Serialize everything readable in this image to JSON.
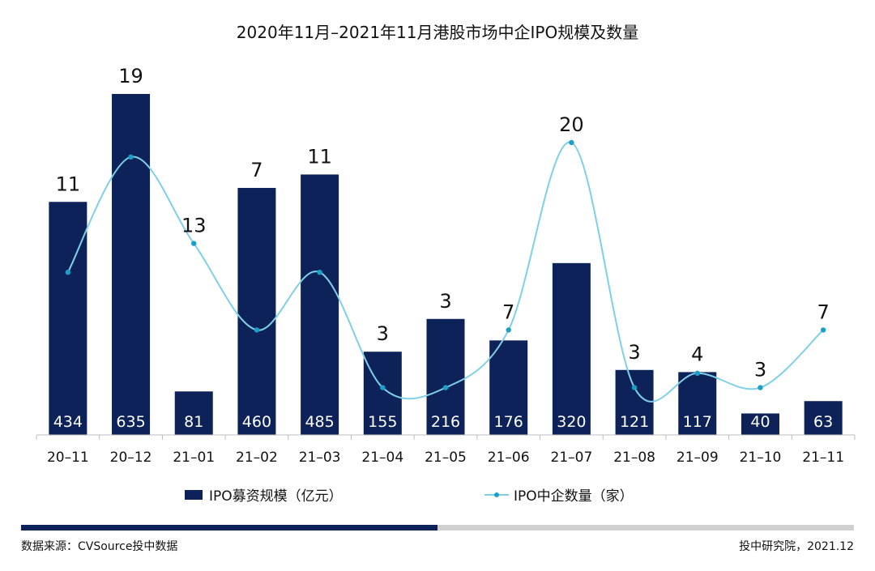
{
  "chart_data": {
    "type": "bar",
    "title": "2020年11月–2021年11月港股市场中企IPO规模及数量",
    "categories": [
      "20–11",
      "20–12",
      "21–01",
      "21–02",
      "21–03",
      "21–04",
      "21–05",
      "21–06",
      "21–07",
      "21–08",
      "21–09",
      "21–10",
      "21–11"
    ],
    "series": [
      {
        "name": "IPO募资规模（亿元）",
        "type": "bar",
        "color": "#0d2259",
        "values": [
          434,
          635,
          81,
          460,
          485,
          155,
          216,
          176,
          320,
          121,
          117,
          40,
          63
        ],
        "labels": [
          "434",
          "635",
          "81",
          "460",
          "485",
          "155",
          "216",
          "176",
          "320",
          "121",
          "117",
          "40",
          "63"
        ]
      },
      {
        "name": "IPO中企数量（家）",
        "type": "line",
        "color": "#7fd0e6",
        "values": [
          11,
          19,
          13,
          7,
          11,
          3,
          3,
          7,
          20,
          3,
          4,
          3,
          7
        ],
        "labels": [
          "11",
          "19",
          "13",
          "7",
          "11",
          "3",
          "3",
          "7",
          "20",
          "3",
          "4",
          "3",
          "7"
        ]
      }
    ],
    "legend_position": "bottom",
    "grid": false
  },
  "footer": {
    "source": "数据来源：CVSource投中数据",
    "credit": "投中研究院，2021.12"
  },
  "progress": {
    "fraction": 0.5
  }
}
